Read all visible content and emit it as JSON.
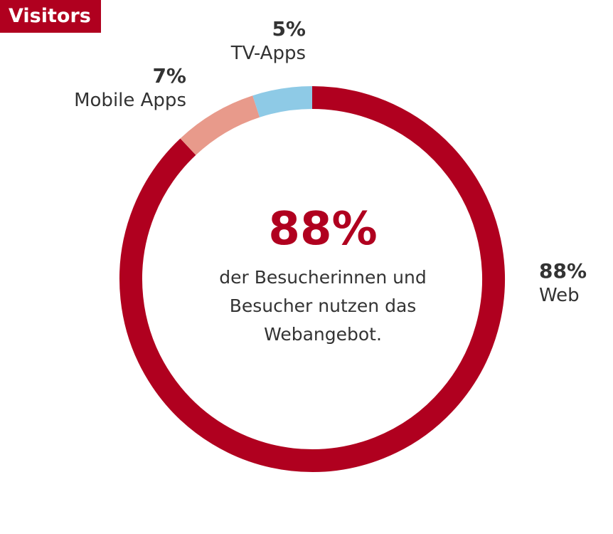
{
  "badge": {
    "label": "Visitors",
    "color": "#b0001f"
  },
  "center": {
    "value": "88%",
    "text": "der Besucherinnen und Besucher nutzen das Webangebot."
  },
  "chart_data": {
    "type": "pie",
    "variant": "donut",
    "categories": [
      "Web",
      "Mobile Apps",
      "TV-Apps"
    ],
    "values": [
      88,
      7,
      5
    ],
    "unit": "%",
    "colors": [
      "#b0001f",
      "#e89a8b",
      "#8ecae6"
    ],
    "labels": [
      {
        "pct": "88%",
        "name": "Web"
      },
      {
        "pct": "7%",
        "name": "Mobile Apps"
      },
      {
        "pct": "5%",
        "name": "TV-Apps"
      }
    ],
    "start_direction": "top",
    "direction": "clockwise"
  }
}
